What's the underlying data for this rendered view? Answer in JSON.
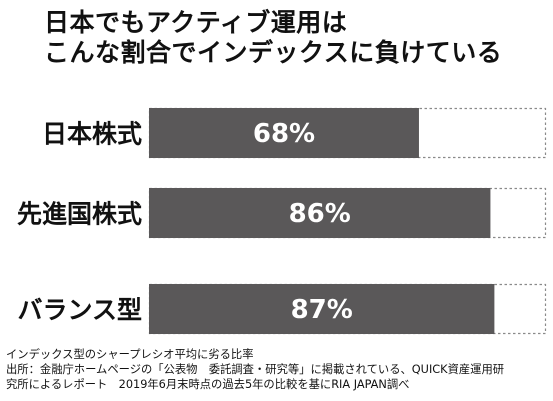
{
  "chart_data": {
    "type": "bar",
    "title_lines": [
      "日本でもアクティブ運用は",
      "こんな割合でインデックスに負けている"
    ],
    "categories": [
      "日本株式",
      "先進国株式",
      "バランス型"
    ],
    "values": [
      68,
      86,
      87
    ],
    "value_labels": [
      "68%",
      "86%",
      "87%"
    ],
    "xlim": [
      0,
      100
    ],
    "orientation": "horizontal",
    "bar_color": "#5a5859",
    "remainder_style": "dashed-outline",
    "grid": false
  },
  "notes": [
    "インデックス型のシャープレシオ平均に劣る比率",
    "出所：金融庁ホームページの「公表物　委託調査・研究等」に掲載されている、QUICK資産運用研",
    "究所によるレポート　2019年6月末時点の過去5年の比較を基にRIA JAPAN調べ"
  ]
}
